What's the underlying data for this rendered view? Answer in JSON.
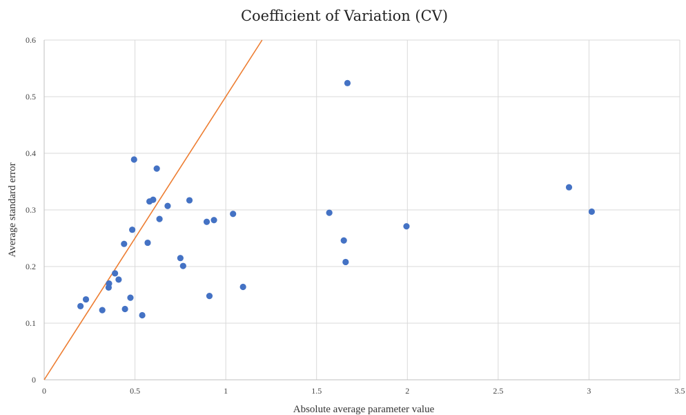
{
  "chart_data": {
    "type": "scatter",
    "title": "Coefficient of  Variation (CV)",
    "xlabel": "Absolute average parameter value",
    "ylabel": "Average standard error",
    "xlim": [
      0,
      3.5
    ],
    "ylim": [
      0,
      0.6
    ],
    "x_ticks": [
      0,
      0.5,
      1,
      1.5,
      2,
      2.5,
      3,
      3.5
    ],
    "x_tick_labels": [
      "0",
      "0.5",
      "1",
      "1.5",
      "2",
      "2.5",
      "3",
      "3.5"
    ],
    "y_ticks": [
      0,
      0.1,
      0.2,
      0.3,
      0.4,
      0.5,
      0.6
    ],
    "y_tick_labels": [
      "0",
      "0.1",
      "0.2",
      "0.3",
      "0.4",
      "0.5",
      "0.6"
    ],
    "grid": true,
    "legend": "none",
    "series": [
      {
        "color": "#4472c4",
        "points": [
          {
            "x": 0.2,
            "y": 0.13
          },
          {
            "x": 0.23,
            "y": 0.142
          },
          {
            "x": 0.32,
            "y": 0.123
          },
          {
            "x": 0.355,
            "y": 0.163
          },
          {
            "x": 0.357,
            "y": 0.17
          },
          {
            "x": 0.39,
            "y": 0.188
          },
          {
            "x": 0.41,
            "y": 0.177
          },
          {
            "x": 0.44,
            "y": 0.24
          },
          {
            "x": 0.445,
            "y": 0.125
          },
          {
            "x": 0.475,
            "y": 0.145
          },
          {
            "x": 0.485,
            "y": 0.265
          },
          {
            "x": 0.495,
            "y": 0.389
          },
          {
            "x": 0.54,
            "y": 0.114
          },
          {
            "x": 0.57,
            "y": 0.242
          },
          {
            "x": 0.58,
            "y": 0.315
          },
          {
            "x": 0.6,
            "y": 0.318
          },
          {
            "x": 0.62,
            "y": 0.373
          },
          {
            "x": 0.635,
            "y": 0.284
          },
          {
            "x": 0.68,
            "y": 0.307
          },
          {
            "x": 0.75,
            "y": 0.215
          },
          {
            "x": 0.765,
            "y": 0.201
          },
          {
            "x": 0.8,
            "y": 0.317
          },
          {
            "x": 0.895,
            "y": 0.279
          },
          {
            "x": 0.91,
            "y": 0.148
          },
          {
            "x": 0.935,
            "y": 0.282
          },
          {
            "x": 1.04,
            "y": 0.293
          },
          {
            "x": 1.095,
            "y": 0.164
          },
          {
            "x": 1.57,
            "y": 0.295
          },
          {
            "x": 1.65,
            "y": 0.246
          },
          {
            "x": 1.66,
            "y": 0.208
          },
          {
            "x": 1.67,
            "y": 0.524
          },
          {
            "x": 1.995,
            "y": 0.271
          },
          {
            "x": 2.89,
            "y": 0.34
          },
          {
            "x": 3.015,
            "y": 0.297
          }
        ]
      }
    ],
    "reference_line": {
      "color": "#ed7d31",
      "points": [
        {
          "x": 0,
          "y": 0
        },
        {
          "x": 1.2,
          "y": 0.6
        }
      ]
    }
  }
}
